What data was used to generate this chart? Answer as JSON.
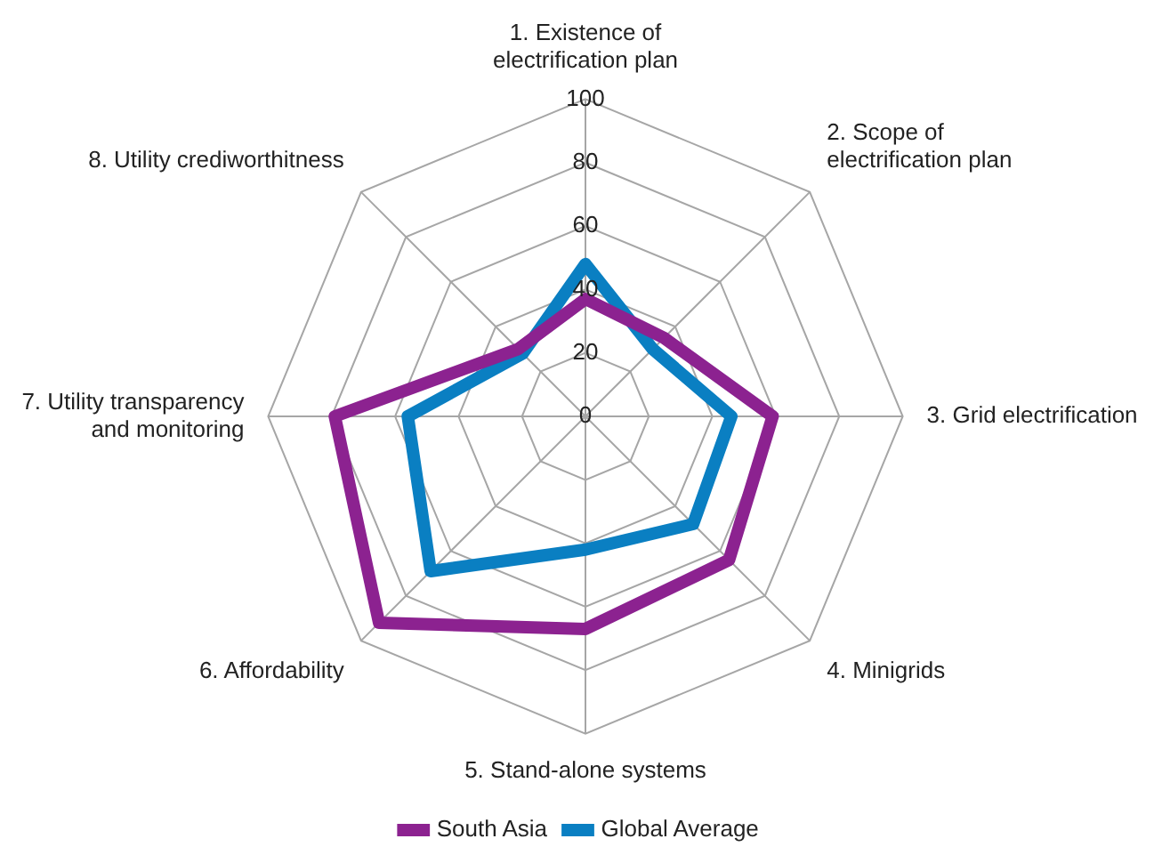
{
  "chart_data": {
    "type": "radar",
    "categories": [
      "1. Existence of\nelectrification plan",
      "2. Scope of\nelectrification plan",
      "3. Grid electrification",
      "4. Minigrids",
      "5. Stand-alone systems",
      "6. Affordability",
      "7. Utility transparency\nand monitoring",
      "8. Utility crediworthitness"
    ],
    "series": [
      {
        "name": "South Asia",
        "color": "#8c2290",
        "values": [
          37,
          35,
          59,
          64,
          67,
          92,
          79,
          30
        ]
      },
      {
        "name": "Global Average",
        "color": "#0a7fc2",
        "values": [
          48,
          30,
          46,
          48,
          42,
          69,
          56,
          28
        ]
      }
    ],
    "ylim": [
      0,
      100
    ],
    "yticks": [
      0,
      20,
      40,
      60,
      80,
      100
    ],
    "grid": true,
    "legend": "bottom",
    "marker": "none"
  }
}
